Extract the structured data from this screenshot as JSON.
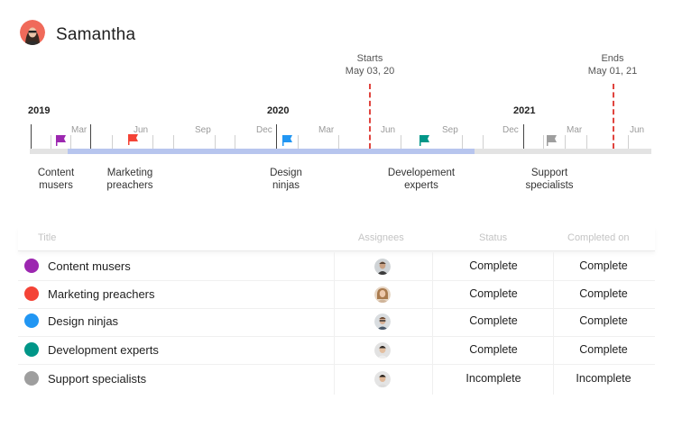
{
  "user": {
    "name": "Samantha"
  },
  "project": {
    "start_label": "Starts",
    "start_date": "May 03, 20",
    "end_label": "Ends",
    "end_date": "May 01, 21"
  },
  "timeline": {
    "years": [
      "2019",
      "2020",
      "2021"
    ],
    "months": [
      "Mar",
      "Jun",
      "Sep",
      "Dec",
      "Mar",
      "Jun",
      "Sep",
      "Dec",
      "Mar",
      "Jun"
    ],
    "teams": [
      {
        "label_line1": "Content",
        "label_line2": "musers",
        "color": "#9c27b0"
      },
      {
        "label_line1": "Marketing",
        "label_line2": "preachers",
        "color": "#f44336"
      },
      {
        "label_line1": "Design",
        "label_line2": "ninjas",
        "color": "#2196f3"
      },
      {
        "label_line1": "Developement",
        "label_line2": "experts",
        "color": "#009688"
      },
      {
        "label_line1": "Support",
        "label_line2": "specialists",
        "color": "#9e9e9e"
      }
    ]
  },
  "table": {
    "headers": {
      "title": "Title",
      "assignees": "Assignees",
      "status": "Status",
      "completed_on": "Completed on"
    },
    "rows": [
      {
        "title": "Content musers",
        "color": "#9c27b0",
        "status": "Complete",
        "completed_on": "Complete"
      },
      {
        "title": "Marketing preachers",
        "color": "#f44336",
        "status": "Complete",
        "completed_on": "Complete"
      },
      {
        "title": "Design ninjas",
        "color": "#2196f3",
        "status": "Complete",
        "completed_on": "Complete"
      },
      {
        "title": "Development experts",
        "color": "#009688",
        "status": "Complete",
        "completed_on": "Complete"
      },
      {
        "title": "Support specialists",
        "color": "#9e9e9e",
        "status": "Incomplete",
        "completed_on": "Incomplete"
      }
    ]
  }
}
